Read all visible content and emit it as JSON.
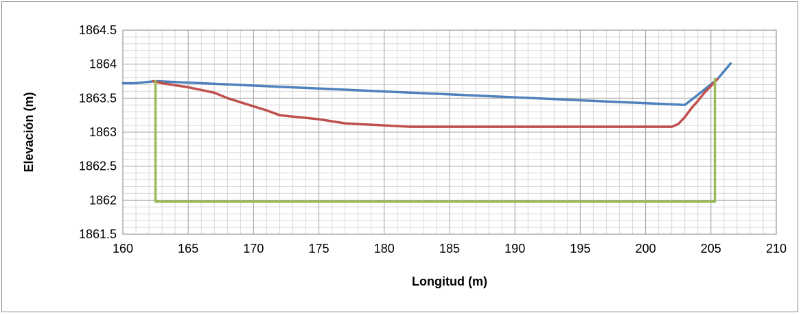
{
  "chart_data": {
    "type": "line",
    "title": "",
    "xlabel": "Longitud (m)",
    "ylabel": "Elevación (m)",
    "xlim": [
      160,
      210
    ],
    "ylim": [
      1861.5,
      1864.5
    ],
    "x_ticks": [
      160,
      165,
      170,
      175,
      180,
      185,
      190,
      195,
      200,
      205,
      210
    ],
    "y_ticks": [
      1861.5,
      1862,
      1862.5,
      1863,
      1863.5,
      1864,
      1864.5
    ],
    "x_minor_step": 1,
    "y_minor_step": 0.1,
    "grid": true,
    "legend": "none",
    "series": [
      {
        "color": "#4F81BD",
        "points": [
          [
            160,
            1863.72
          ],
          [
            161,
            1863.72
          ],
          [
            161.5,
            1863.73
          ],
          [
            162.5,
            1863.75
          ],
          [
            203,
            1863.4
          ],
          [
            204,
            1863.55
          ],
          [
            205.5,
            1863.78
          ],
          [
            206.5,
            1864.01
          ]
        ]
      },
      {
        "color": "#C0504D",
        "points": [
          [
            162.3,
            1863.75
          ],
          [
            163,
            1863.72
          ],
          [
            164,
            1863.69
          ],
          [
            165,
            1863.66
          ],
          [
            166,
            1863.62
          ],
          [
            167,
            1863.58
          ],
          [
            168,
            1863.5
          ],
          [
            169,
            1863.44
          ],
          [
            170,
            1863.38
          ],
          [
            171,
            1863.32
          ],
          [
            172,
            1863.25
          ],
          [
            173,
            1863.23
          ],
          [
            174,
            1863.21
          ],
          [
            175,
            1863.19
          ],
          [
            176,
            1863.16
          ],
          [
            177,
            1863.13
          ],
          [
            178,
            1863.12
          ],
          [
            179,
            1863.11
          ],
          [
            180,
            1863.1
          ],
          [
            181,
            1863.09
          ],
          [
            182,
            1863.08
          ],
          [
            190,
            1863.08
          ],
          [
            200,
            1863.08
          ],
          [
            202,
            1863.08
          ],
          [
            202.5,
            1863.12
          ],
          [
            203,
            1863.22
          ],
          [
            203.5,
            1863.35
          ],
          [
            204,
            1863.46
          ],
          [
            204.5,
            1863.58
          ],
          [
            205,
            1863.68
          ],
          [
            205.5,
            1863.78
          ]
        ]
      },
      {
        "color": "#9BBB59",
        "points": [
          [
            162.5,
            1863.75
          ],
          [
            162.5,
            1861.98
          ],
          [
            205.3,
            1861.98
          ],
          [
            205.3,
            1863.78
          ]
        ]
      }
    ]
  }
}
